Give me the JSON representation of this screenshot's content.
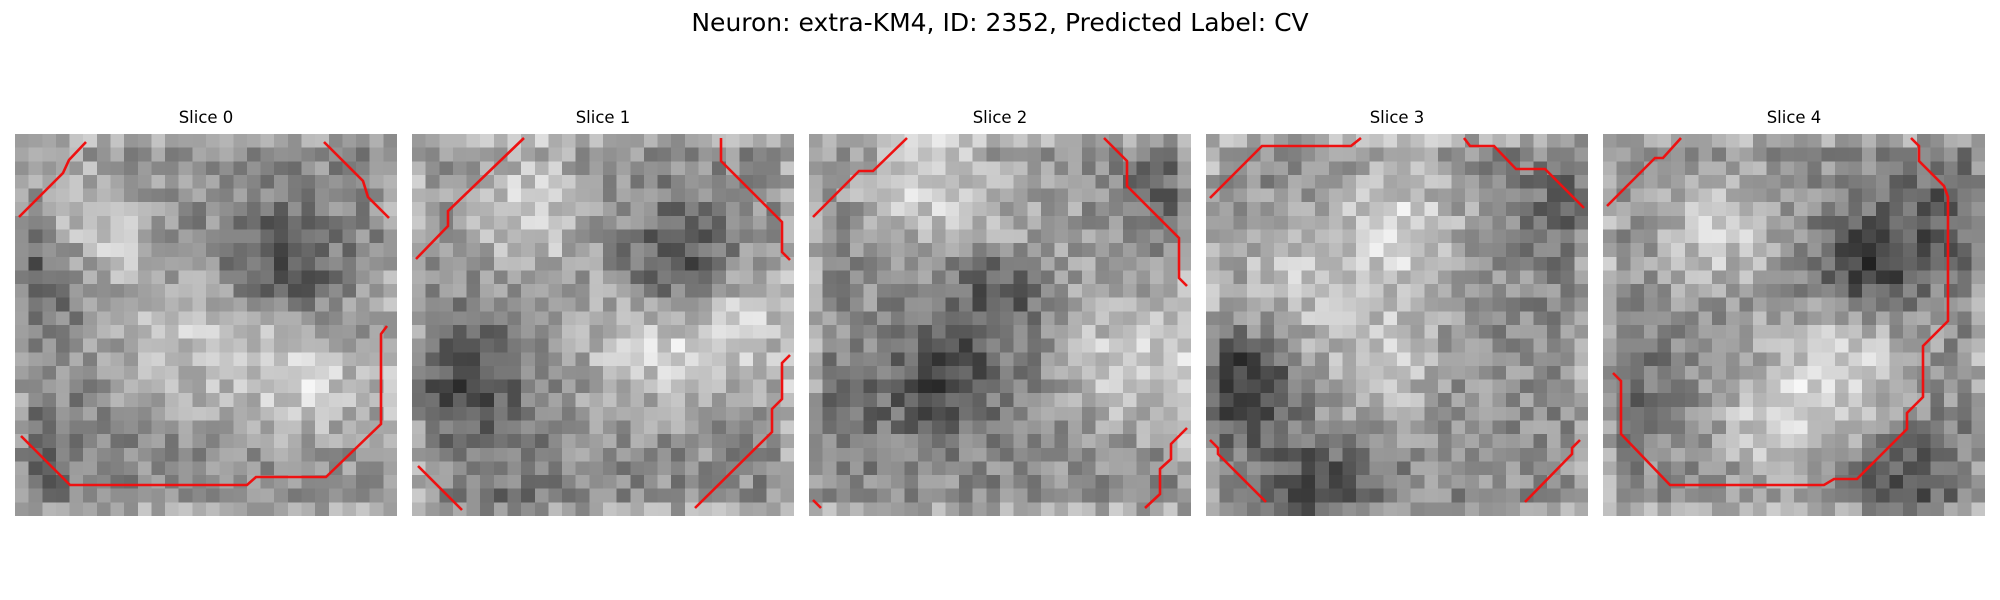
{
  "figure": {
    "title": "Neuron: extra-KM4, ID: 2352, Predicted Label: CV",
    "contour_color": "#ee1111",
    "colormap": "gray",
    "grid_size": 28
  },
  "slices": [
    {
      "title": "Slice 0",
      "seed": 11,
      "bright_regions": [
        [
          0.2,
          0.25,
          0.75
        ],
        [
          0.75,
          0.62,
          0.85
        ],
        [
          0.45,
          0.55,
          0.6
        ]
      ],
      "dark_regions": [
        [
          0.05,
          0.85,
          0.15
        ],
        [
          0.05,
          0.35,
          0.3
        ],
        [
          0.7,
          0.35,
          0.3
        ]
      ]
    },
    {
      "title": "Slice 1",
      "seed": 23,
      "bright_regions": [
        [
          0.3,
          0.2,
          0.8
        ],
        [
          0.6,
          0.55,
          0.75
        ],
        [
          0.85,
          0.5,
          0.8
        ]
      ],
      "dark_regions": [
        [
          0.15,
          0.65,
          0.3
        ],
        [
          0.25,
          0.97,
          0.1
        ],
        [
          0.7,
          0.35,
          0.35
        ]
      ]
    },
    {
      "title": "Slice 2",
      "seed": 37,
      "bright_regions": [
        [
          0.3,
          0.12,
          0.8
        ],
        [
          0.85,
          0.6,
          0.85
        ],
        [
          0.55,
          0.3,
          0.55
        ]
      ],
      "dark_regions": [
        [
          0.1,
          0.75,
          0.1
        ],
        [
          0.95,
          0.15,
          0.15
        ],
        [
          0.35,
          0.65,
          0.3
        ],
        [
          0.5,
          0.4,
          0.35
        ]
      ]
    },
    {
      "title": "Slice 3",
      "seed": 41,
      "bright_regions": [
        [
          0.5,
          0.25,
          0.85
        ],
        [
          0.45,
          0.6,
          0.65
        ],
        [
          0.2,
          0.4,
          0.55
        ]
      ],
      "dark_regions": [
        [
          0.97,
          0.2,
          0.2
        ],
        [
          0.3,
          0.95,
          0.35
        ],
        [
          0.1,
          0.65,
          0.4
        ]
      ]
    },
    {
      "title": "Slice 4",
      "seed": 53,
      "bright_regions": [
        [
          0.3,
          0.25,
          0.7
        ],
        [
          0.65,
          0.6,
          0.8
        ],
        [
          0.45,
          0.75,
          0.65
        ]
      ],
      "dark_regions": [
        [
          0.9,
          0.2,
          0.2
        ],
        [
          0.05,
          0.65,
          0.15
        ],
        [
          0.7,
          0.35,
          0.35
        ],
        [
          0.8,
          0.9,
          0.25
        ]
      ]
    }
  ]
}
